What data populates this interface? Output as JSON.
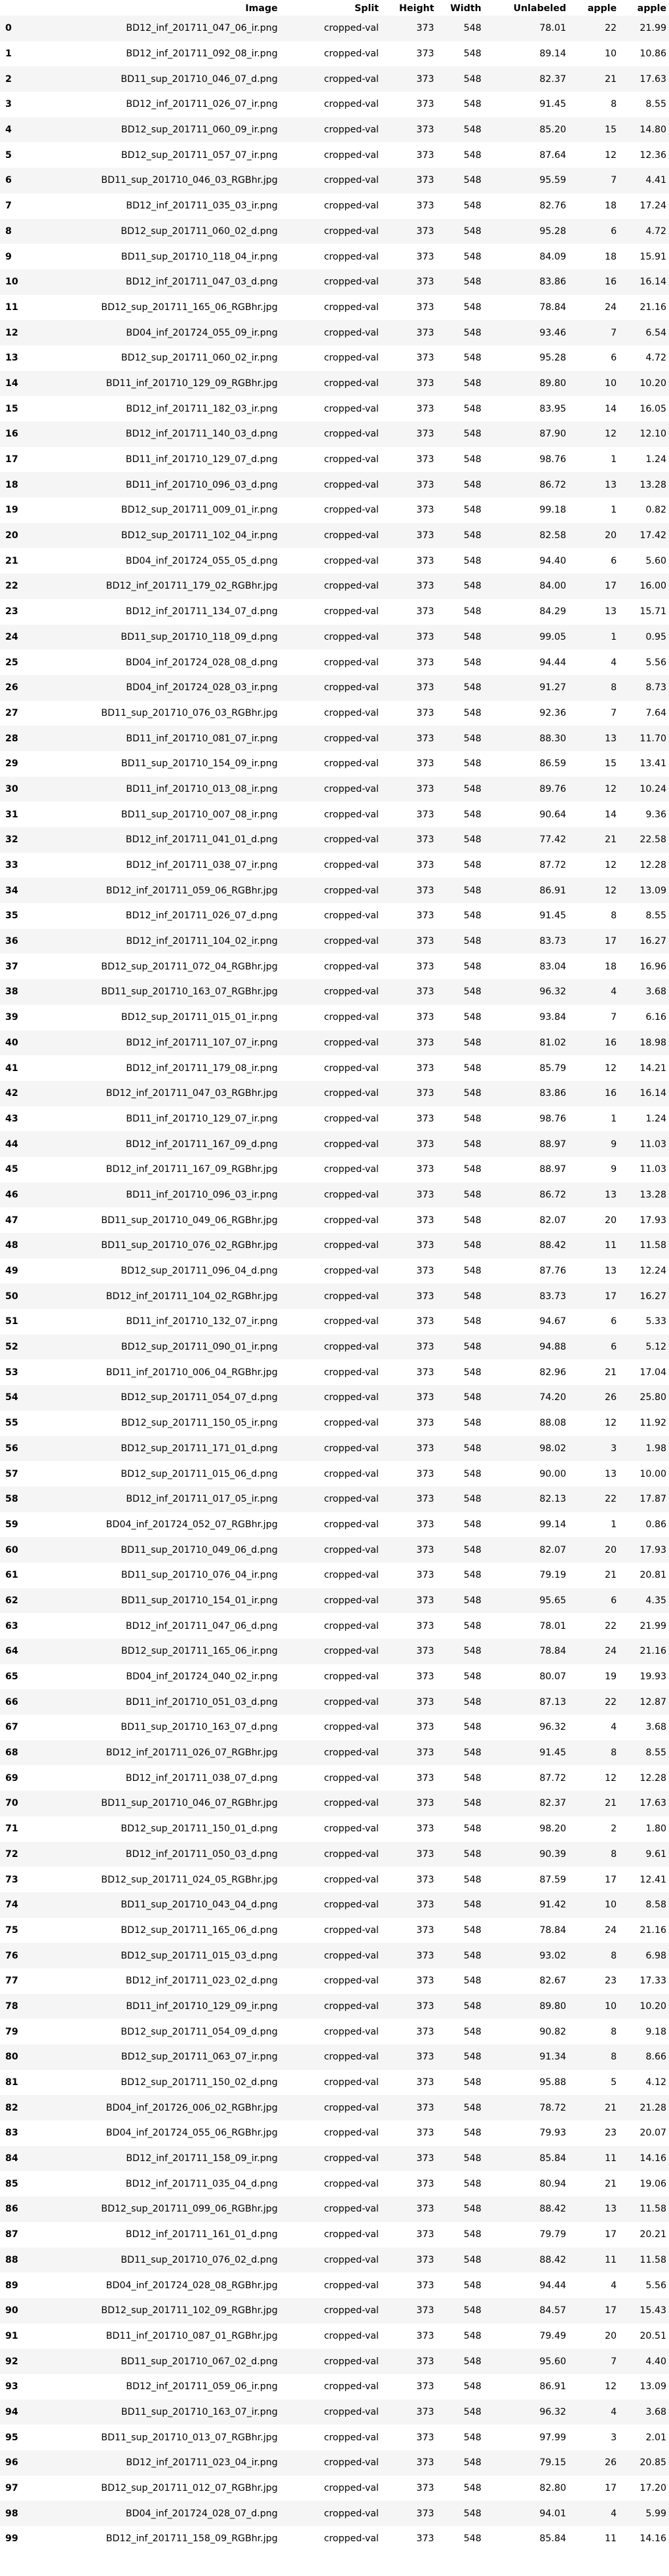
{
  "columns": [
    "",
    "Image",
    "Split",
    "Height",
    "Width",
    "Unlabeled",
    "apple",
    "apple"
  ],
  "rows": [
    [
      "0",
      "BD12_inf_201711_047_06_ir.png",
      "cropped-val",
      "373",
      "548",
      "78.01",
      "22",
      "21.99"
    ],
    [
      "1",
      "BD12_inf_201711_092_08_ir.png",
      "cropped-val",
      "373",
      "548",
      "89.14",
      "10",
      "10.86"
    ],
    [
      "2",
      "BD11_sup_201710_046_07_d.png",
      "cropped-val",
      "373",
      "548",
      "82.37",
      "21",
      "17.63"
    ],
    [
      "3",
      "BD12_inf_201711_026_07_ir.png",
      "cropped-val",
      "373",
      "548",
      "91.45",
      "8",
      "8.55"
    ],
    [
      "4",
      "BD12_sup_201711_060_09_ir.png",
      "cropped-val",
      "373",
      "548",
      "85.20",
      "15",
      "14.80"
    ],
    [
      "5",
      "BD12_sup_201711_057_07_ir.png",
      "cropped-val",
      "373",
      "548",
      "87.64",
      "12",
      "12.36"
    ],
    [
      "6",
      "BD11_sup_201710_046_03_RGBhr.jpg",
      "cropped-val",
      "373",
      "548",
      "95.59",
      "7",
      "4.41"
    ],
    [
      "7",
      "BD12_inf_201711_035_03_ir.png",
      "cropped-val",
      "373",
      "548",
      "82.76",
      "18",
      "17.24"
    ],
    [
      "8",
      "BD12_sup_201711_060_02_d.png",
      "cropped-val",
      "373",
      "548",
      "95.28",
      "6",
      "4.72"
    ],
    [
      "9",
      "BD11_sup_201710_118_04_ir.png",
      "cropped-val",
      "373",
      "548",
      "84.09",
      "18",
      "15.91"
    ],
    [
      "10",
      "BD12_inf_201711_047_03_d.png",
      "cropped-val",
      "373",
      "548",
      "83.86",
      "16",
      "16.14"
    ],
    [
      "11",
      "BD12_sup_201711_165_06_RGBhr.jpg",
      "cropped-val",
      "373",
      "548",
      "78.84",
      "24",
      "21.16"
    ],
    [
      "12",
      "BD04_inf_201724_055_09_ir.png",
      "cropped-val",
      "373",
      "548",
      "93.46",
      "7",
      "6.54"
    ],
    [
      "13",
      "BD12_sup_201711_060_02_ir.png",
      "cropped-val",
      "373",
      "548",
      "95.28",
      "6",
      "4.72"
    ],
    [
      "14",
      "BD11_inf_201710_129_09_RGBhr.jpg",
      "cropped-val",
      "373",
      "548",
      "89.80",
      "10",
      "10.20"
    ],
    [
      "15",
      "BD12_inf_201711_182_03_ir.png",
      "cropped-val",
      "373",
      "548",
      "83.95",
      "14",
      "16.05"
    ],
    [
      "16",
      "BD12_inf_201711_140_03_d.png",
      "cropped-val",
      "373",
      "548",
      "87.90",
      "12",
      "12.10"
    ],
    [
      "17",
      "BD11_inf_201710_129_07_d.png",
      "cropped-val",
      "373",
      "548",
      "98.76",
      "1",
      "1.24"
    ],
    [
      "18",
      "BD11_inf_201710_096_03_d.png",
      "cropped-val",
      "373",
      "548",
      "86.72",
      "13",
      "13.28"
    ],
    [
      "19",
      "BD12_sup_201711_009_01_ir.png",
      "cropped-val",
      "373",
      "548",
      "99.18",
      "1",
      "0.82"
    ],
    [
      "20",
      "BD12_sup_201711_102_04_ir.png",
      "cropped-val",
      "373",
      "548",
      "82.58",
      "20",
      "17.42"
    ],
    [
      "21",
      "BD04_inf_201724_055_05_d.png",
      "cropped-val",
      "373",
      "548",
      "94.40",
      "6",
      "5.60"
    ],
    [
      "22",
      "BD12_inf_201711_179_02_RGBhr.jpg",
      "cropped-val",
      "373",
      "548",
      "84.00",
      "17",
      "16.00"
    ],
    [
      "23",
      "BD12_inf_201711_134_07_d.png",
      "cropped-val",
      "373",
      "548",
      "84.29",
      "13",
      "15.71"
    ],
    [
      "24",
      "BD11_sup_201710_118_09_d.png",
      "cropped-val",
      "373",
      "548",
      "99.05",
      "1",
      "0.95"
    ],
    [
      "25",
      "BD04_inf_201724_028_08_d.png",
      "cropped-val",
      "373",
      "548",
      "94.44",
      "4",
      "5.56"
    ],
    [
      "26",
      "BD04_inf_201724_028_03_ir.png",
      "cropped-val",
      "373",
      "548",
      "91.27",
      "8",
      "8.73"
    ],
    [
      "27",
      "BD11_sup_201710_076_03_RGBhr.jpg",
      "cropped-val",
      "373",
      "548",
      "92.36",
      "7",
      "7.64"
    ],
    [
      "28",
      "BD11_inf_201710_081_07_ir.png",
      "cropped-val",
      "373",
      "548",
      "88.30",
      "13",
      "11.70"
    ],
    [
      "29",
      "BD11_sup_201710_154_09_ir.png",
      "cropped-val",
      "373",
      "548",
      "86.59",
      "15",
      "13.41"
    ],
    [
      "30",
      "BD11_inf_201710_013_08_ir.png",
      "cropped-val",
      "373",
      "548",
      "89.76",
      "12",
      "10.24"
    ],
    [
      "31",
      "BD11_sup_201710_007_08_ir.png",
      "cropped-val",
      "373",
      "548",
      "90.64",
      "14",
      "9.36"
    ],
    [
      "32",
      "BD12_inf_201711_041_01_d.png",
      "cropped-val",
      "373",
      "548",
      "77.42",
      "21",
      "22.58"
    ],
    [
      "33",
      "BD12_inf_201711_038_07_ir.png",
      "cropped-val",
      "373",
      "548",
      "87.72",
      "12",
      "12.28"
    ],
    [
      "34",
      "BD12_inf_201711_059_06_RGBhr.jpg",
      "cropped-val",
      "373",
      "548",
      "86.91",
      "12",
      "13.09"
    ],
    [
      "35",
      "BD12_inf_201711_026_07_d.png",
      "cropped-val",
      "373",
      "548",
      "91.45",
      "8",
      "8.55"
    ],
    [
      "36",
      "BD12_inf_201711_104_02_ir.png",
      "cropped-val",
      "373",
      "548",
      "83.73",
      "17",
      "16.27"
    ],
    [
      "37",
      "BD12_sup_201711_072_04_RGBhr.jpg",
      "cropped-val",
      "373",
      "548",
      "83.04",
      "18",
      "16.96"
    ],
    [
      "38",
      "BD11_sup_201710_163_07_RGBhr.jpg",
      "cropped-val",
      "373",
      "548",
      "96.32",
      "4",
      "3.68"
    ],
    [
      "39",
      "BD12_sup_201711_015_01_ir.png",
      "cropped-val",
      "373",
      "548",
      "93.84",
      "7",
      "6.16"
    ],
    [
      "40",
      "BD12_inf_201711_107_07_ir.png",
      "cropped-val",
      "373",
      "548",
      "81.02",
      "16",
      "18.98"
    ],
    [
      "41",
      "BD12_inf_201711_179_08_ir.png",
      "cropped-val",
      "373",
      "548",
      "85.79",
      "12",
      "14.21"
    ],
    [
      "42",
      "BD12_inf_201711_047_03_RGBhr.jpg",
      "cropped-val",
      "373",
      "548",
      "83.86",
      "16",
      "16.14"
    ],
    [
      "43",
      "BD11_inf_201710_129_07_ir.png",
      "cropped-val",
      "373",
      "548",
      "98.76",
      "1",
      "1.24"
    ],
    [
      "44",
      "BD12_inf_201711_167_09_d.png",
      "cropped-val",
      "373",
      "548",
      "88.97",
      "9",
      "11.03"
    ],
    [
      "45",
      "BD12_inf_201711_167_09_RGBhr.jpg",
      "cropped-val",
      "373",
      "548",
      "88.97",
      "9",
      "11.03"
    ],
    [
      "46",
      "BD11_inf_201710_096_03_ir.png",
      "cropped-val",
      "373",
      "548",
      "86.72",
      "13",
      "13.28"
    ],
    [
      "47",
      "BD11_sup_201710_049_06_RGBhr.jpg",
      "cropped-val",
      "373",
      "548",
      "82.07",
      "20",
      "17.93"
    ],
    [
      "48",
      "BD11_sup_201710_076_02_RGBhr.jpg",
      "cropped-val",
      "373",
      "548",
      "88.42",
      "11",
      "11.58"
    ],
    [
      "49",
      "BD12_sup_201711_096_04_d.png",
      "cropped-val",
      "373",
      "548",
      "87.76",
      "13",
      "12.24"
    ],
    [
      "50",
      "BD12_inf_201711_104_02_RGBhr.jpg",
      "cropped-val",
      "373",
      "548",
      "83.73",
      "17",
      "16.27"
    ],
    [
      "51",
      "BD11_inf_201710_132_07_ir.png",
      "cropped-val",
      "373",
      "548",
      "94.67",
      "6",
      "5.33"
    ],
    [
      "52",
      "BD12_sup_201711_090_01_ir.png",
      "cropped-val",
      "373",
      "548",
      "94.88",
      "6",
      "5.12"
    ],
    [
      "53",
      "BD11_inf_201710_006_04_RGBhr.jpg",
      "cropped-val",
      "373",
      "548",
      "82.96",
      "21",
      "17.04"
    ],
    [
      "54",
      "BD12_sup_201711_054_07_d.png",
      "cropped-val",
      "373",
      "548",
      "74.20",
      "26",
      "25.80"
    ],
    [
      "55",
      "BD12_sup_201711_150_05_ir.png",
      "cropped-val",
      "373",
      "548",
      "88.08",
      "12",
      "11.92"
    ],
    [
      "56",
      "BD12_sup_201711_171_01_d.png",
      "cropped-val",
      "373",
      "548",
      "98.02",
      "3",
      "1.98"
    ],
    [
      "57",
      "BD12_sup_201711_015_06_d.png",
      "cropped-val",
      "373",
      "548",
      "90.00",
      "13",
      "10.00"
    ],
    [
      "58",
      "BD12_inf_201711_017_05_ir.png",
      "cropped-val",
      "373",
      "548",
      "82.13",
      "22",
      "17.87"
    ],
    [
      "59",
      "BD04_inf_201724_052_07_RGBhr.jpg",
      "cropped-val",
      "373",
      "548",
      "99.14",
      "1",
      "0.86"
    ],
    [
      "60",
      "BD11_sup_201710_049_06_d.png",
      "cropped-val",
      "373",
      "548",
      "82.07",
      "20",
      "17.93"
    ],
    [
      "61",
      "BD11_sup_201710_076_04_ir.png",
      "cropped-val",
      "373",
      "548",
      "79.19",
      "21",
      "20.81"
    ],
    [
      "62",
      "BD11_sup_201710_154_01_ir.png",
      "cropped-val",
      "373",
      "548",
      "95.65",
      "6",
      "4.35"
    ],
    [
      "63",
      "BD12_inf_201711_047_06_d.png",
      "cropped-val",
      "373",
      "548",
      "78.01",
      "22",
      "21.99"
    ],
    [
      "64",
      "BD12_sup_201711_165_06_ir.png",
      "cropped-val",
      "373",
      "548",
      "78.84",
      "24",
      "21.16"
    ],
    [
      "65",
      "BD04_inf_201724_040_02_ir.png",
      "cropped-val",
      "373",
      "548",
      "80.07",
      "19",
      "19.93"
    ],
    [
      "66",
      "BD11_inf_201710_051_03_d.png",
      "cropped-val",
      "373",
      "548",
      "87.13",
      "22",
      "12.87"
    ],
    [
      "67",
      "BD11_sup_201710_163_07_d.png",
      "cropped-val",
      "373",
      "548",
      "96.32",
      "4",
      "3.68"
    ],
    [
      "68",
      "BD12_inf_201711_026_07_RGBhr.jpg",
      "cropped-val",
      "373",
      "548",
      "91.45",
      "8",
      "8.55"
    ],
    [
      "69",
      "BD12_inf_201711_038_07_d.png",
      "cropped-val",
      "373",
      "548",
      "87.72",
      "12",
      "12.28"
    ],
    [
      "70",
      "BD11_sup_201710_046_07_RGBhr.jpg",
      "cropped-val",
      "373",
      "548",
      "82.37",
      "21",
      "17.63"
    ],
    [
      "71",
      "BD12_sup_201711_150_01_d.png",
      "cropped-val",
      "373",
      "548",
      "98.20",
      "2",
      "1.80"
    ],
    [
      "72",
      "BD12_inf_201711_050_03_d.png",
      "cropped-val",
      "373",
      "548",
      "90.39",
      "8",
      "9.61"
    ],
    [
      "73",
      "BD12_sup_201711_024_05_RGBhr.jpg",
      "cropped-val",
      "373",
      "548",
      "87.59",
      "17",
      "12.41"
    ],
    [
      "74",
      "BD11_sup_201710_043_04_d.png",
      "cropped-val",
      "373",
      "548",
      "91.42",
      "10",
      "8.58"
    ],
    [
      "75",
      "BD12_sup_201711_165_06_d.png",
      "cropped-val",
      "373",
      "548",
      "78.84",
      "24",
      "21.16"
    ],
    [
      "76",
      "BD12_sup_201711_015_03_d.png",
      "cropped-val",
      "373",
      "548",
      "93.02",
      "8",
      "6.98"
    ],
    [
      "77",
      "BD12_inf_201711_023_02_d.png",
      "cropped-val",
      "373",
      "548",
      "82.67",
      "23",
      "17.33"
    ],
    [
      "78",
      "BD11_inf_201710_129_09_ir.png",
      "cropped-val",
      "373",
      "548",
      "89.80",
      "10",
      "10.20"
    ],
    [
      "79",
      "BD12_sup_201711_054_09_d.png",
      "cropped-val",
      "373",
      "548",
      "90.82",
      "8",
      "9.18"
    ],
    [
      "80",
      "BD12_sup_201711_063_07_ir.png",
      "cropped-val",
      "373",
      "548",
      "91.34",
      "8",
      "8.66"
    ],
    [
      "81",
      "BD12_sup_201711_150_02_d.png",
      "cropped-val",
      "373",
      "548",
      "95.88",
      "5",
      "4.12"
    ],
    [
      "82",
      "BD04_inf_201726_006_02_RGBhr.jpg",
      "cropped-val",
      "373",
      "548",
      "78.72",
      "21",
      "21.28"
    ],
    [
      "83",
      "BD04_inf_201724_055_06_RGBhr.jpg",
      "cropped-val",
      "373",
      "548",
      "79.93",
      "23",
      "20.07"
    ],
    [
      "84",
      "BD12_inf_201711_158_09_ir.png",
      "cropped-val",
      "373",
      "548",
      "85.84",
      "11",
      "14.16"
    ],
    [
      "85",
      "BD12_inf_201711_035_04_d.png",
      "cropped-val",
      "373",
      "548",
      "80.94",
      "21",
      "19.06"
    ],
    [
      "86",
      "BD12_sup_201711_099_06_RGBhr.jpg",
      "cropped-val",
      "373",
      "548",
      "88.42",
      "13",
      "11.58"
    ],
    [
      "87",
      "BD12_inf_201711_161_01_d.png",
      "cropped-val",
      "373",
      "548",
      "79.79",
      "17",
      "20.21"
    ],
    [
      "88",
      "BD11_sup_201710_076_02_d.png",
      "cropped-val",
      "373",
      "548",
      "88.42",
      "11",
      "11.58"
    ],
    [
      "89",
      "BD04_inf_201724_028_08_RGBhr.jpg",
      "cropped-val",
      "373",
      "548",
      "94.44",
      "4",
      "5.56"
    ],
    [
      "90",
      "BD12_sup_201711_102_09_RGBhr.jpg",
      "cropped-val",
      "373",
      "548",
      "84.57",
      "17",
      "15.43"
    ],
    [
      "91",
      "BD11_inf_201710_087_01_RGBhr.jpg",
      "cropped-val",
      "373",
      "548",
      "79.49",
      "20",
      "20.51"
    ],
    [
      "92",
      "BD11_sup_201710_067_02_d.png",
      "cropped-val",
      "373",
      "548",
      "95.60",
      "7",
      "4.40"
    ],
    [
      "93",
      "BD12_inf_201711_059_06_ir.png",
      "cropped-val",
      "373",
      "548",
      "86.91",
      "12",
      "13.09"
    ],
    [
      "94",
      "BD11_sup_201710_163_07_ir.png",
      "cropped-val",
      "373",
      "548",
      "96.32",
      "4",
      "3.68"
    ],
    [
      "95",
      "BD11_sup_201710_013_07_RGBhr.jpg",
      "cropped-val",
      "373",
      "548",
      "97.99",
      "3",
      "2.01"
    ],
    [
      "96",
      "BD12_inf_201711_023_04_ir.png",
      "cropped-val",
      "373",
      "548",
      "79.15",
      "26",
      "20.85"
    ],
    [
      "97",
      "BD12_sup_201711_012_07_RGBhr.jpg",
      "cropped-val",
      "373",
      "548",
      "82.80",
      "17",
      "17.20"
    ],
    [
      "98",
      "BD04_inf_201724_028_07_d.png",
      "cropped-val",
      "373",
      "548",
      "94.01",
      "4",
      "5.99"
    ],
    [
      "99",
      "BD12_inf_201711_158_09_RGBhr.jpg",
      "cropped-val",
      "373",
      "548",
      "85.84",
      "11",
      "14.16"
    ]
  ]
}
